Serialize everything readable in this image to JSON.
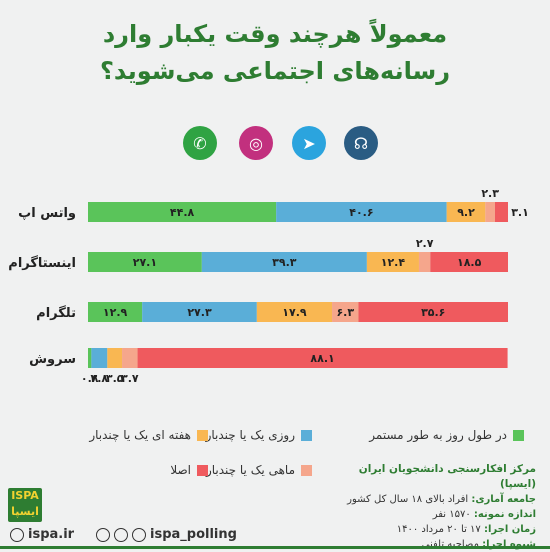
{
  "title": {
    "line1": "معمولاً هرچند وقت یکبار وارد",
    "line2": "رسانه‌های اجتماعی می‌شوید؟"
  },
  "icons": [
    {
      "name": "whatsapp",
      "color": "#2fa343",
      "glyph": "✆"
    },
    {
      "name": "instagram",
      "color": "#c2307e",
      "glyph": "◎"
    },
    {
      "name": "telegram",
      "color": "#2ba4de",
      "glyph": "➤"
    },
    {
      "name": "soroush",
      "color": "#2a5c83",
      "glyph": "☊"
    }
  ],
  "colors": {
    "continuous": "#5ac45a",
    "daily": "#5aaed8",
    "weekly": "#f9b752",
    "monthly": "#f5a68c",
    "never": "#ef5a5e"
  },
  "chart_data": {
    "type": "bar",
    "orientation": "horizontal-stacked",
    "categories": [
      "واتس اپ",
      "اینستاگرام",
      "تلگرام",
      "سروش"
    ],
    "series": [
      {
        "name": "در طول روز به طور مستمر",
        "values": [
          44.8,
          27.1,
          12.9,
          0.8
        ],
        "labels": [
          "۴۴.۸",
          "۲۷.۱",
          "۱۲.۹",
          "۰.۸"
        ]
      },
      {
        "name": "روزی یک یا چندبار",
        "values": [
          40.6,
          39.3,
          27.3,
          3.8
        ],
        "labels": [
          "۴۰.۶",
          "۳۹.۳",
          "۲۷.۳",
          "۳.۸"
        ]
      },
      {
        "name": "هفته ای یک یا چندبار",
        "values": [
          9.2,
          12.4,
          17.9,
          3.5
        ],
        "labels": [
          "۹.۲",
          "۱۲.۴",
          "۱۷.۹",
          "۳.۵"
        ]
      },
      {
        "name": "ماهی یک یا چندبار",
        "values": [
          2.3,
          2.7,
          6.3,
          3.7
        ],
        "labels": [
          "۲.۳",
          "۲.۷",
          "۶.۳",
          "۳.۷"
        ]
      },
      {
        "name": "اصلا",
        "values": [
          3.1,
          18.5,
          35.6,
          88.1
        ],
        "labels": [
          "۳.۱",
          "۱۸.۵",
          "۳۵.۶",
          "۸۸.۱"
        ]
      }
    ],
    "xlim": [
      0,
      100
    ]
  },
  "legend": [
    {
      "label": "در طول روز به طور مستمر",
      "key": "continuous"
    },
    {
      "label": "روزی یک یا چندبار",
      "key": "daily"
    },
    {
      "label": "هفته ای یک یا چندبار",
      "key": "weekly"
    },
    {
      "label": "ماهی یک یا چندبار",
      "key": "monthly"
    },
    {
      "label": "اصلا",
      "key": "never"
    }
  ],
  "footer": {
    "org": "مرکز افکارسنجی دانشجویان ایران (ایسپا)",
    "population_key": "جامعه آماری:",
    "population_val": "افراد بالای ۱۸ سال کل کشور",
    "sample_key": "اندازه نمونه:",
    "sample_val": "۱۵۷۰ نفر",
    "time_key": "زمان اجرا:",
    "time_val": "۱۷ تا ۲۰ مرداد ۱۴۰۰",
    "method_key": "شیوه اجرا:",
    "method_val": "مصاحبه تلفنی"
  },
  "logo_text": "ISPA ایسپا",
  "website": "ispa.ir",
  "social_handle": "ispa_polling",
  "social_icons": [
    "instagram-icon",
    "telegram-icon",
    "whatsapp-icon"
  ]
}
